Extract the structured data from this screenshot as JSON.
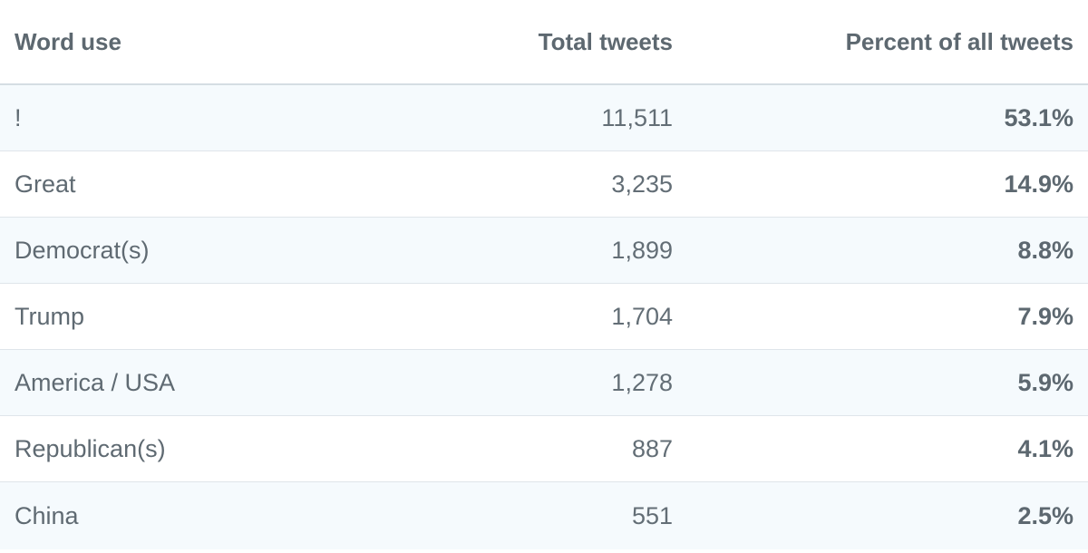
{
  "chart_data": {
    "type": "table",
    "columns": [
      "Word use",
      "Total tweets",
      "Percent of all tweets"
    ],
    "rows": [
      {
        "word": "!",
        "total": "11,511",
        "percent": "53.1%"
      },
      {
        "word": "Great",
        "total": "3,235",
        "percent": "14.9%"
      },
      {
        "word": "Democrat(s)",
        "total": "1,899",
        "percent": "8.8%"
      },
      {
        "word": "Trump",
        "total": "1,704",
        "percent": "7.9%"
      },
      {
        "word": "America / USA",
        "total": "1,278",
        "percent": "5.9%"
      },
      {
        "word": "Republican(s)",
        "total": "887",
        "percent": "4.1%"
      },
      {
        "word": "China",
        "total": "551",
        "percent": "2.5%"
      }
    ]
  }
}
